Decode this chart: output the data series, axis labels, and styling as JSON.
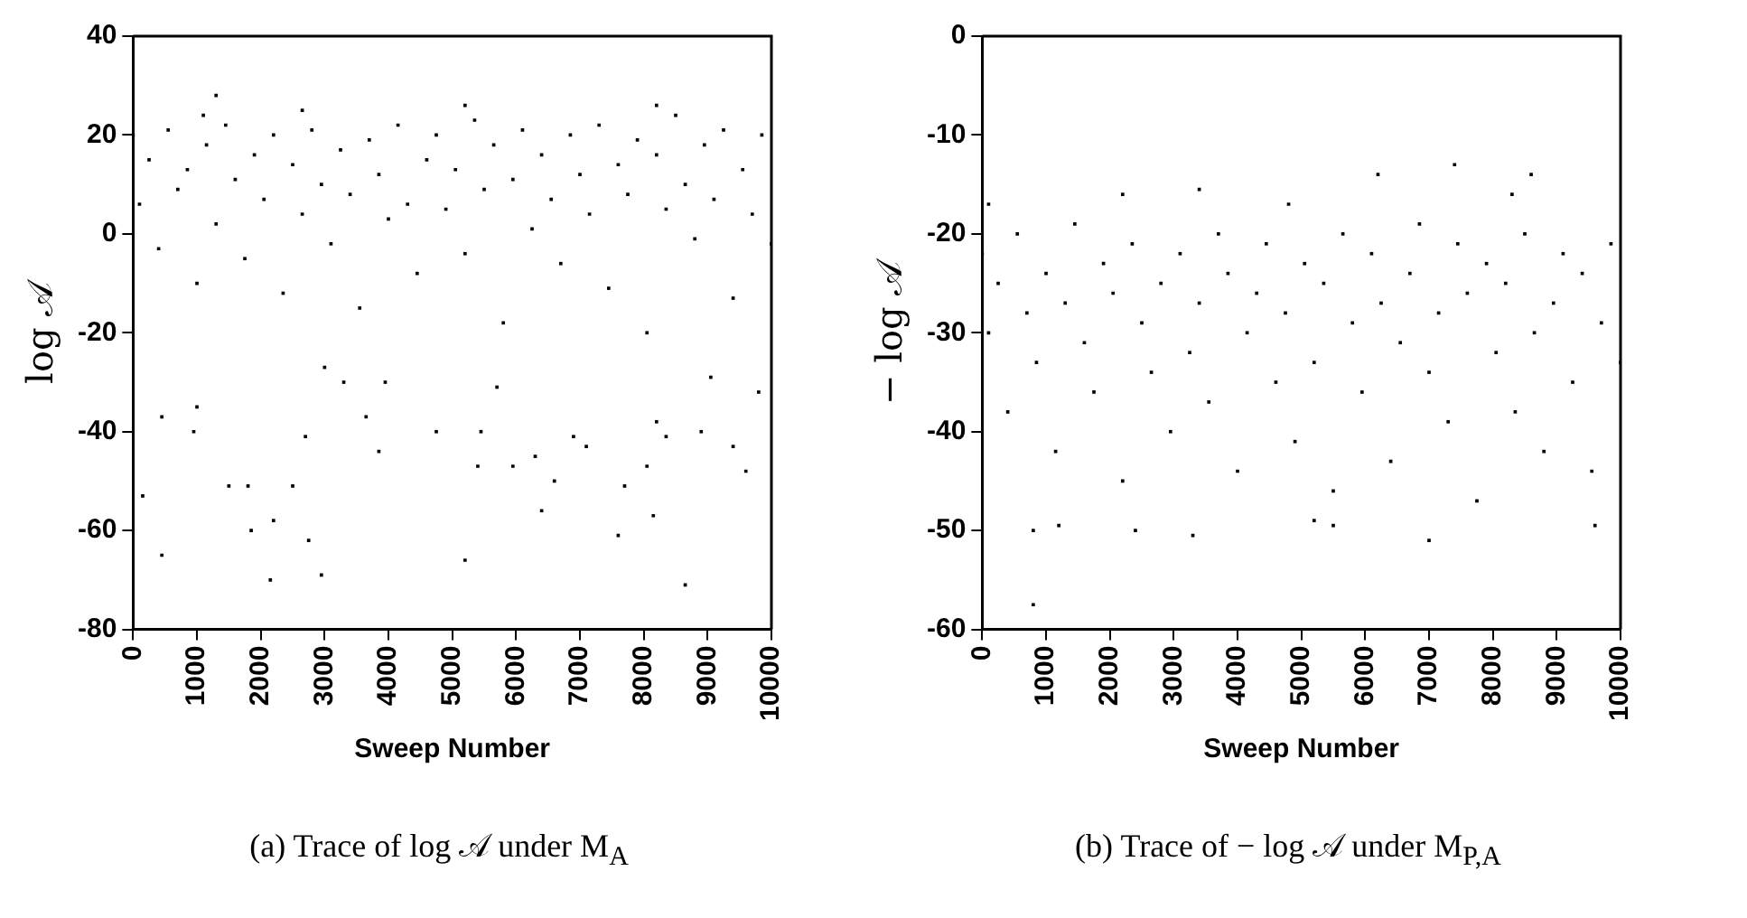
{
  "chart_data": [
    {
      "type": "scatter",
      "ylabel": "log 𝒜",
      "xlabel": "Sweep Number",
      "annotations": [
        "(a) Trace of log 𝒜 under M$_{A}$"
      ],
      "color": "#000000",
      "marker": "square",
      "grid": false,
      "x": [
        0,
        100,
        250,
        400,
        550,
        700,
        850,
        1000,
        1150,
        1300,
        1450,
        1600,
        1750,
        1900,
        2050,
        2200,
        2350,
        2500,
        2650,
        2800,
        2950,
        3100,
        3250,
        3400,
        3550,
        3700,
        3850,
        4000,
        4150,
        4300,
        4450,
        4600,
        4750,
        4900,
        5050,
        5200,
        5350,
        5500,
        5650,
        5800,
        5950,
        6100,
        6250,
        6400,
        6550,
        6700,
        6850,
        7000,
        7150,
        7300,
        7450,
        7600,
        7750,
        7900,
        8050,
        8200,
        8350,
        8500,
        8650,
        8800,
        8950,
        9100,
        9250,
        9400,
        9550,
        9700,
        9850,
        10000,
        150,
        450,
        450,
        950,
        1000,
        1500,
        1800,
        1850,
        2150,
        2200,
        2500,
        2750,
        2950,
        2700,
        3000,
        3300,
        3650,
        3850,
        3950,
        4750,
        5200,
        5400,
        5450,
        5700,
        5950,
        6300,
        6400,
        6600,
        6900,
        7100,
        7600,
        7700,
        8050,
        8150,
        8200,
        8350,
        8650,
        8900,
        9050,
        9400,
        9600,
        9800,
        1300,
        2650,
        5200,
        8200,
        1100
      ],
      "values": [
        20,
        6,
        15,
        -3,
        21,
        9,
        13,
        -10,
        18,
        2,
        22,
        11,
        -5,
        16,
        7,
        20,
        -12,
        14,
        4,
        21,
        10,
        -2,
        17,
        8,
        -15,
        19,
        12,
        3,
        22,
        6,
        -8,
        15,
        20,
        5,
        13,
        -4,
        23,
        9,
        18,
        -18,
        11,
        21,
        1,
        16,
        7,
        -6,
        20,
        12,
        4,
        22,
        -11,
        14,
        8,
        19,
        -20,
        16,
        5,
        24,
        10,
        -1,
        18,
        7,
        21,
        -13,
        13,
        4,
        20,
        -2,
        -53,
        -65,
        -37,
        -40,
        -35,
        -51,
        -51,
        -60,
        -70,
        -58,
        -51,
        -62,
        -69,
        -41,
        -27,
        -30,
        -37,
        -44,
        -30,
        -40,
        -66,
        -47,
        -40,
        -31,
        -47,
        -45,
        -56,
        -50,
        -41,
        -43,
        -61,
        -51,
        -47,
        -57,
        -38,
        -41,
        -71,
        -40,
        -29,
        -43,
        -48,
        -32,
        28,
        25,
        26,
        26,
        24
      ],
      "xlim": [
        0,
        10000
      ],
      "xticks": [
        0,
        1000,
        2000,
        3000,
        4000,
        5000,
        6000,
        7000,
        8000,
        9000,
        10000
      ],
      "ylim": [
        -80,
        40
      ],
      "yticks": [
        -80,
        -60,
        -40,
        -20,
        0,
        20,
        40
      ]
    },
    {
      "type": "scatter",
      "ylabel": "− log 𝒜",
      "xlabel": "Sweep Number",
      "annotations": [
        "(b) Trace of − log 𝒜 under M$_{P,A}$"
      ],
      "color": "#000000",
      "marker": "square",
      "grid": false,
      "x": [
        0,
        100,
        250,
        400,
        550,
        700,
        850,
        1000,
        1150,
        1300,
        1450,
        1600,
        1750,
        1900,
        2050,
        2200,
        2350,
        2500,
        2650,
        2800,
        2950,
        3100,
        3250,
        3400,
        3550,
        3700,
        3850,
        4000,
        4150,
        4300,
        4450,
        4600,
        4750,
        4900,
        5050,
        5200,
        5350,
        5500,
        5650,
        5800,
        5950,
        6100,
        6250,
        6400,
        6550,
        6700,
        6850,
        7000,
        7150,
        7300,
        7450,
        7600,
        7750,
        7900,
        8050,
        8200,
        8350,
        8500,
        8650,
        8800,
        8950,
        9100,
        9250,
        9400,
        9550,
        9700,
        9850,
        10000,
        800,
        800,
        1200,
        2400,
        3300,
        7000,
        5200,
        5500,
        9600,
        6200,
        7400,
        8600,
        8300,
        3400,
        2200,
        100,
        4800
      ],
      "values": [
        -22,
        -30,
        -25,
        -38,
        -20,
        -28,
        -33,
        -24,
        -42,
        -27,
        -19,
        -31,
        -36,
        -23,
        -26,
        -45,
        -21,
        -29,
        -34,
        -25,
        -40,
        -22,
        -32,
        -27,
        -37,
        -20,
        -24,
        -44,
        -30,
        -26,
        -21,
        -35,
        -28,
        -41,
        -23,
        -33,
        -25,
        -46,
        -20,
        -29,
        -36,
        -22,
        -27,
        -43,
        -31,
        -24,
        -19,
        -34,
        -28,
        -39,
        -21,
        -26,
        -47,
        -23,
        -32,
        -25,
        -38,
        -20,
        -30,
        -42,
        -27,
        -22,
        -35,
        -24,
        -44,
        -29,
        -21,
        -33,
        -57.5,
        -50,
        -49.5,
        -50,
        -50.5,
        -51,
        -49,
        -49.5,
        -49.5,
        -14,
        -13,
        -14,
        -16,
        -15.5,
        -16,
        -17,
        -17
      ],
      "xlim": [
        0,
        10000
      ],
      "xticks": [
        0,
        1000,
        2000,
        3000,
        4000,
        5000,
        6000,
        7000,
        8000,
        9000,
        10000
      ],
      "ylim": [
        -60,
        0
      ],
      "yticks": [
        -60,
        -50,
        -40,
        -30,
        -20,
        -10,
        0
      ]
    }
  ]
}
